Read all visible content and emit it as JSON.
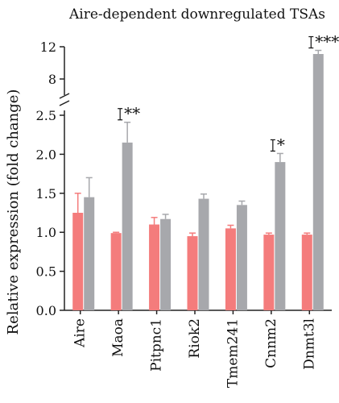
{
  "chart_data": {
    "type": "bar",
    "title": "Aire-dependent downregulated TSAs",
    "ylabel": "Relative expression (fold change)",
    "xlabel": "",
    "categories": [
      "Aire",
      "Maoa",
      "Pitpnc1",
      "Riok2",
      "Tmem241",
      "Cnnm2",
      "Dnmt3l"
    ],
    "series": [
      {
        "color": "#f47c7c",
        "values": [
          1.25,
          0.99,
          1.1,
          0.95,
          1.05,
          0.97,
          0.97
        ],
        "errors": [
          0.25,
          0.01,
          0.09,
          0.04,
          0.04,
          0.02,
          0.02
        ]
      },
      {
        "color": "#a7a8ac",
        "values": [
          1.45,
          2.15,
          1.17,
          1.43,
          1.35,
          1.9,
          11.1
        ],
        "errors": [
          0.25,
          0.26,
          0.06,
          0.06,
          0.05,
          0.11,
          0.45
        ]
      }
    ],
    "y_lower": {
      "range": [
        0,
        2.5
      ],
      "ticks": [
        0.0,
        0.5,
        1.0,
        1.5,
        2.0,
        2.5
      ]
    },
    "y_upper": {
      "range": [
        6.5,
        12.5
      ],
      "ticks": [
        8,
        12
      ]
    },
    "y_break": [
      2.5,
      6.5
    ],
    "significance": [
      {
        "category": "Maoa",
        "label": "**"
      },
      {
        "category": "Cnnm2",
        "label": "*"
      },
      {
        "category": "Dnmt3l",
        "label": "****"
      }
    ],
    "grid": false,
    "legend": "none"
  }
}
